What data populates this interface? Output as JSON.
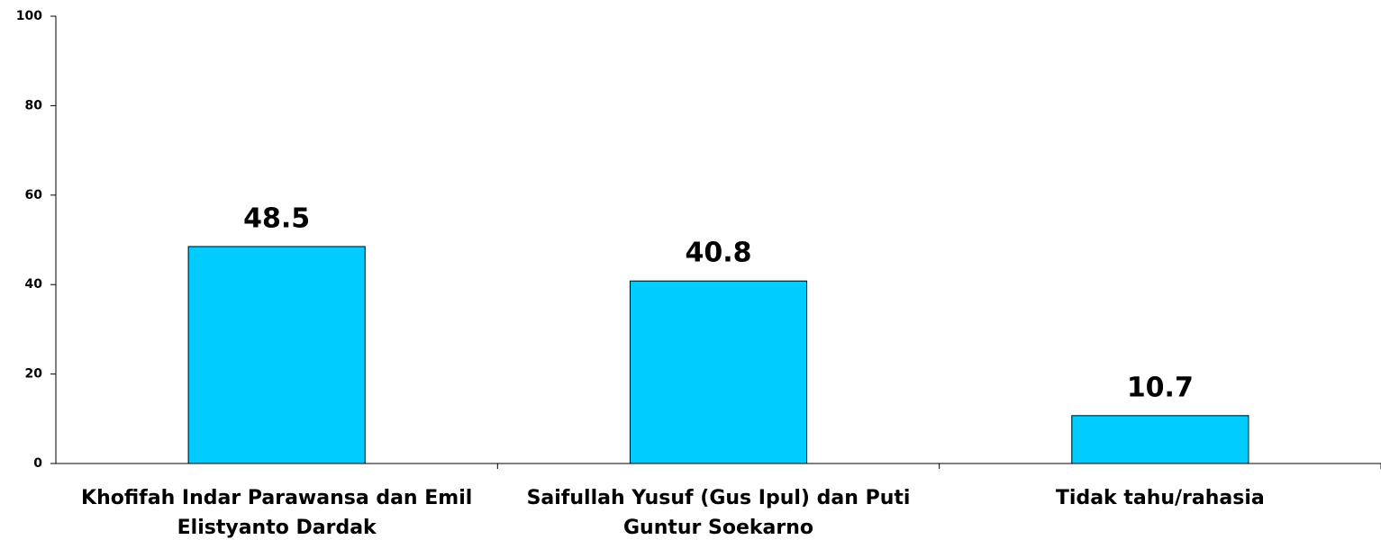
{
  "chart_data": {
    "type": "bar",
    "categories": [
      "Khofifah Indar Parawansa dan Emil Elistyanto Dardak",
      "Saifullah Yusuf (Gus Ipul) dan Puti Guntur Soekarno",
      "Tidak tahu/rahasia"
    ],
    "values": [
      48.5,
      40.8,
      10.7
    ],
    "color": "#00ccff",
    "ylim": [
      0,
      100
    ],
    "yticks": [
      0,
      20,
      40,
      60,
      80,
      100
    ],
    "grid": false
  }
}
